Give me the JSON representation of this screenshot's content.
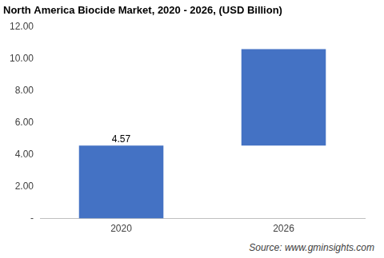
{
  "chart_data": {
    "type": "waterfall",
    "title": "North America Biocide Market, 2020 - 2026, (USD Billion)",
    "categories": [
      "2020",
      "2026"
    ],
    "values": [
      4.57,
      6.03
    ],
    "color": "#4472c4",
    "data_labels": true,
    "value_labels": [
      "4.57",
      null
    ],
    "ylim": [
      0,
      12
    ],
    "yticks": [
      {
        "value": 0,
        "label": "-"
      },
      {
        "value": 2,
        "label": "2.00"
      },
      {
        "value": 4,
        "label": "4.00"
      },
      {
        "value": 6,
        "label": "6.00"
      },
      {
        "value": 8,
        "label": "8.00"
      },
      {
        "value": 10,
        "label": "10.00"
      },
      {
        "value": 12,
        "label": "12.00"
      }
    ],
    "grid": false,
    "source": "Source: www.gminsights.com"
  }
}
